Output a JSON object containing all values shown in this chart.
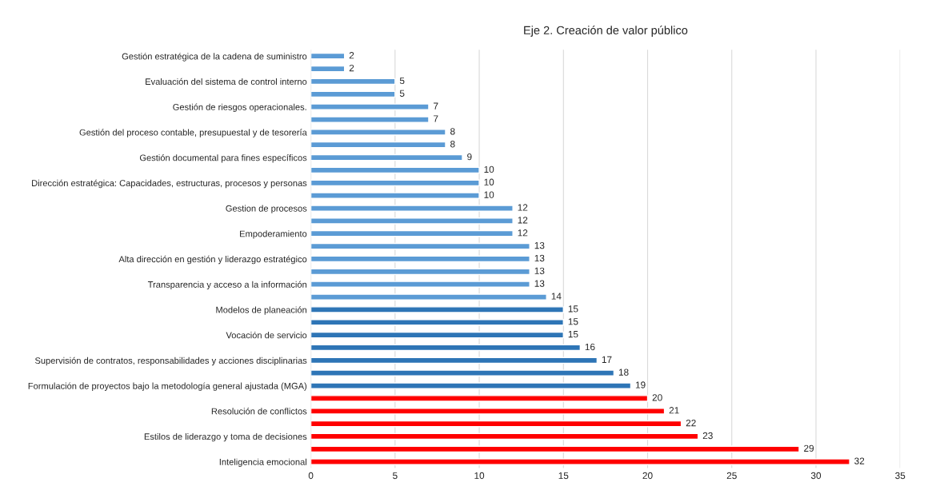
{
  "chart_data": {
    "type": "bar",
    "orientation": "horizontal",
    "title": "Eje 2. Creación de valor público",
    "categories": [
      "Gestión estratégica de la cadena de suministro",
      null,
      "Evaluación del sistema de control interno",
      null,
      "Gestión de riesgos operacionales.",
      null,
      "Gestión del proceso contable, presupuestal y de tesorería",
      null,
      "Gestión documental para fines específicos",
      null,
      "Dirección estratégica: Capacidades, estructuras, procesos y personas",
      null,
      "Gestion de procesos",
      null,
      "Empoderamiento",
      null,
      "Alta dirección en gestión y liderazgo estratégico",
      null,
      "Transparencia y acceso a la información",
      null,
      "Modelos de planeación",
      null,
      "Vocación de servicio",
      null,
      "Supervisión de contratos, responsabilidades y acciones disciplinarias",
      null,
      "Formulación de proyectos bajo la metodología general ajustada (MGA)",
      null,
      "Resolución de conflictos",
      null,
      "Estilos de liderazgo y toma de decisiones",
      null,
      "Inteligencia emocional"
    ],
    "values": [
      2,
      2,
      5,
      5,
      7,
      7,
      8,
      8,
      9,
      10,
      10,
      10,
      12,
      12,
      12,
      13,
      13,
      13,
      13,
      14,
      15,
      15,
      15,
      16,
      17,
      18,
      19,
      20,
      21,
      22,
      23,
      29,
      32
    ],
    "colors": [
      "#5b9bd5",
      "#5b9bd5",
      "#5b9bd5",
      "#5b9bd5",
      "#5b9bd5",
      "#5b9bd5",
      "#5b9bd5",
      "#5b9bd5",
      "#5b9bd5",
      "#5b9bd5",
      "#5b9bd5",
      "#5b9bd5",
      "#5b9bd5",
      "#5b9bd5",
      "#5b9bd5",
      "#5b9bd5",
      "#5b9bd5",
      "#5b9bd5",
      "#5b9bd5",
      "#5b9bd5",
      "#2e75b6",
      "#2e75b6",
      "#2e75b6",
      "#2e75b6",
      "#2e75b6",
      "#2e75b6",
      "#2e75b6",
      "#ff0000",
      "#ff0000",
      "#ff0000",
      "#ff0000",
      "#ff0000",
      "#ff0000"
    ],
    "xlim": [
      0,
      35
    ],
    "xticks": [
      0,
      5,
      10,
      15,
      20,
      25,
      30,
      35
    ],
    "grid": "x",
    "data_labels": true
  }
}
